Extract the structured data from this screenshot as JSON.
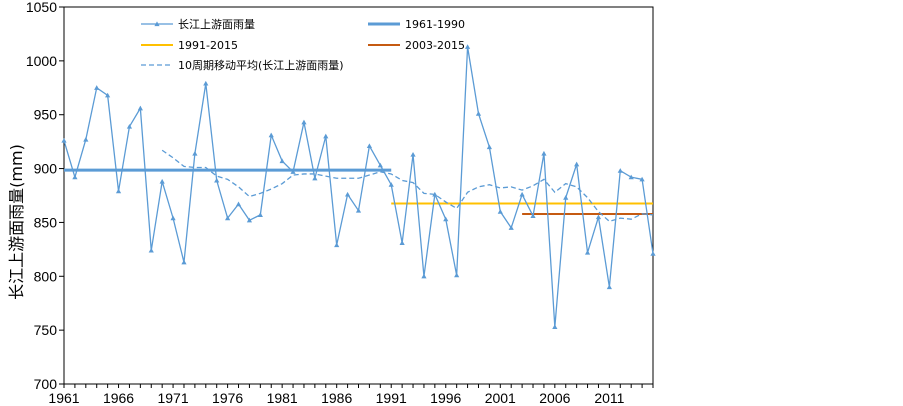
{
  "chart_data": {
    "type": "line",
    "ylabel": "长江上游面雨量(mm)",
    "xlabel": "",
    "ylim": [
      700,
      1050
    ],
    "xlim": [
      1961,
      2015
    ],
    "y_ticks": [
      700,
      750,
      800,
      850,
      900,
      950,
      1000,
      1050
    ],
    "x_ticks": [
      1961,
      1966,
      1971,
      1976,
      1981,
      1986,
      1991,
      1996,
      2001,
      2006,
      2011
    ],
    "grid": false,
    "legend_position": "top",
    "colors": {
      "series": "#5b9bd5",
      "mean_1961_1990": "#5b9bd5",
      "mean_1991_2015": "#ffc000",
      "mean_2003_2015": "#c55a11",
      "moving_avg": "#5b9bd5"
    },
    "series": [
      {
        "name": "长江上游面雨量",
        "style": "line-with-triangle-markers",
        "x": [
          1961,
          1962,
          1963,
          1964,
          1965,
          1966,
          1967,
          1968,
          1969,
          1970,
          1971,
          1972,
          1973,
          1974,
          1975,
          1976,
          1977,
          1978,
          1979,
          1980,
          1981,
          1982,
          1983,
          1984,
          1985,
          1986,
          1987,
          1988,
          1989,
          1990,
          1991,
          1992,
          1993,
          1994,
          1995,
          1996,
          1997,
          1998,
          1999,
          2000,
          2001,
          2002,
          2003,
          2004,
          2005,
          2006,
          2007,
          2008,
          2009,
          2010,
          2011,
          2012,
          2013,
          2014,
          2015
        ],
        "values": [
          926,
          892,
          927,
          975,
          968,
          879,
          939,
          956,
          824,
          888,
          854,
          813,
          914,
          979,
          889,
          854,
          867,
          852,
          857,
          931,
          907,
          897,
          943,
          891,
          930,
          829,
          876,
          861,
          921,
          903,
          885,
          831,
          913,
          800,
          876,
          853,
          801,
          1013,
          951,
          920,
          860,
          845,
          876,
          856,
          914,
          753,
          873,
          904,
          822,
          855,
          790,
          898,
          892,
          890,
          821
        ]
      },
      {
        "name": "1961-1990",
        "style": "horizontal-line",
        "x": [
          1961,
          1991
        ],
        "values": [
          898.6,
          898.6
        ]
      },
      {
        "name": "1991-2015",
        "style": "horizontal-line",
        "x": [
          1991,
          2015
        ],
        "values": [
          867.6,
          867.6
        ]
      },
      {
        "name": "2003-2015",
        "style": "horizontal-line",
        "x": [
          2003,
          2015
        ],
        "values": [
          857.8,
          857.8
        ]
      },
      {
        "name": "10周期移动平均(长江上游面雨量)",
        "style": "dashed-line",
        "x": [
          1970,
          1971,
          1972,
          1973,
          1974,
          1975,
          1976,
          1977,
          1978,
          1979,
          1980,
          1981,
          1982,
          1983,
          1984,
          1985,
          1986,
          1987,
          1988,
          1989,
          1990,
          1991,
          1992,
          1993,
          1994,
          1995,
          1996,
          1997,
          1998,
          1999,
          2000,
          2001,
          2002,
          2003,
          2004,
          2005,
          2006,
          2007,
          2008,
          2009,
          2010,
          2011,
          2012,
          2013,
          2014,
          2015
        ],
        "values": [
          917,
          910,
          902,
          901,
          901,
          893,
          890,
          883,
          874,
          877,
          881,
          886,
          894,
          895,
          895,
          893,
          891,
          891,
          891,
          894,
          897,
          895,
          889,
          887,
          877,
          876,
          869,
          863,
          878,
          883,
          885,
          882,
          883,
          880,
          884,
          890,
          878,
          886,
          883,
          873,
          860,
          851,
          854,
          853,
          858,
          857
        ]
      }
    ]
  }
}
